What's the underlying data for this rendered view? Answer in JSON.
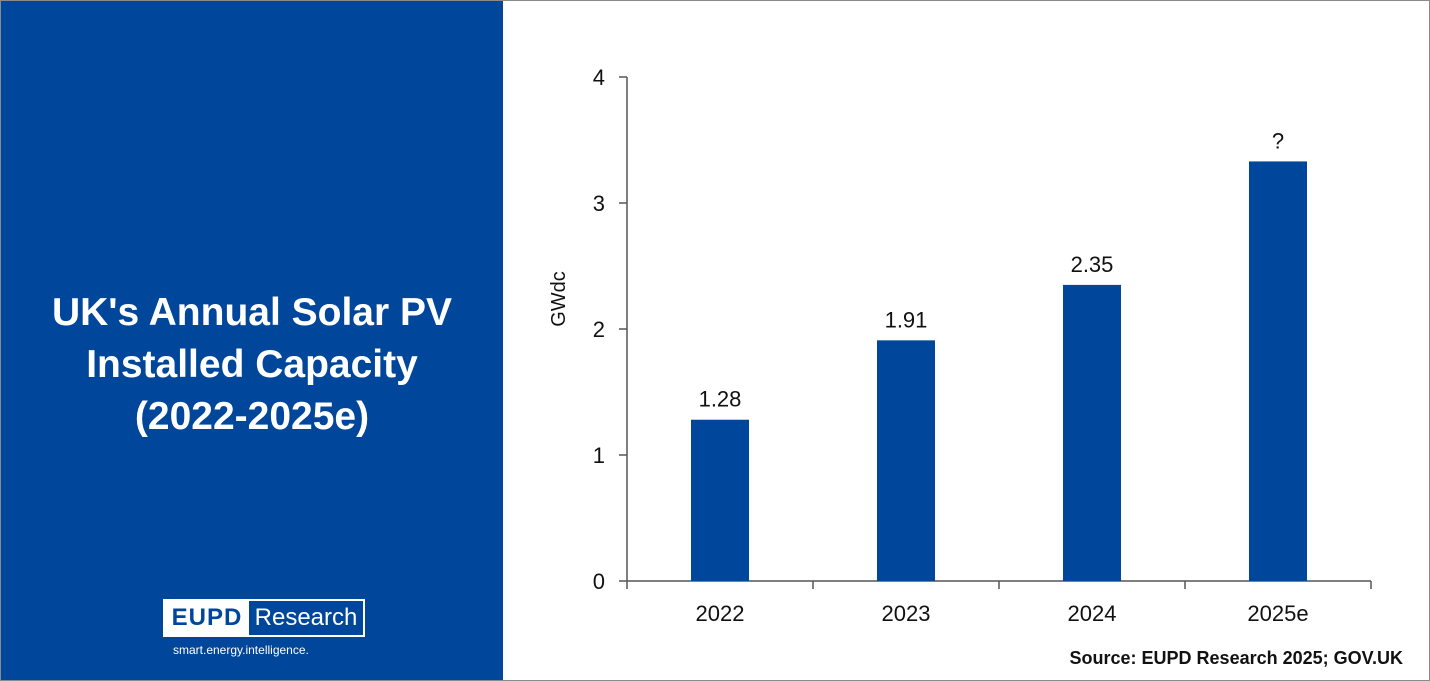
{
  "headline": {
    "line1": "UK's Annual Solar PV",
    "line2": "Installed Capacity",
    "line3": "(2022-2025e)"
  },
  "logo": {
    "left_text": "EUPD",
    "right_text": "Research",
    "tagline": "smart.energy.intelligence."
  },
  "source": "Source: EUPD Research 2025; GOV.UK",
  "colors": {
    "panel": "#00479b",
    "bar": "#00479b",
    "axis": "#555555",
    "text": "#111111"
  },
  "chart_data": {
    "type": "bar",
    "categories": [
      "2022",
      "2023",
      "2024",
      "2025e"
    ],
    "series": [
      {
        "values": [
          1.28,
          1.91,
          2.35,
          3.33
        ]
      }
    ],
    "data_labels": [
      "1.28",
      "1.91",
      "2.35",
      "?"
    ],
    "ylabel": "GWdc",
    "xlabel": "",
    "ylim": [
      0,
      4
    ],
    "yticks": [
      0,
      1,
      2,
      3,
      4
    ],
    "grid": false,
    "legend": "none"
  }
}
